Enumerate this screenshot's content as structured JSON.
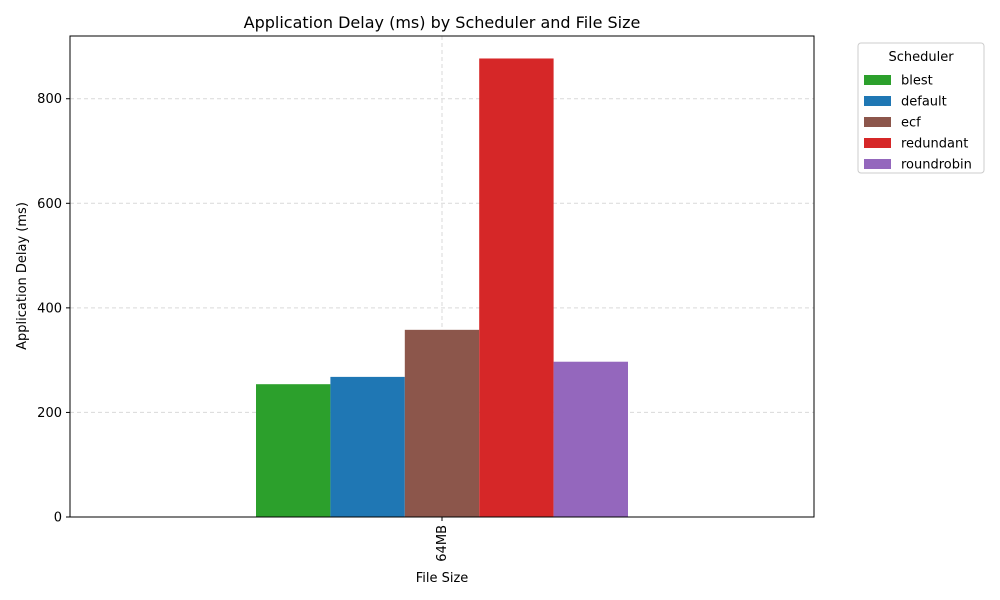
{
  "chart_data": {
    "type": "bar",
    "title": "Application Delay (ms) by Scheduler and File Size",
    "xlabel": "File Size",
    "ylabel": "Application Delay (ms)",
    "categories": [
      "64MB"
    ],
    "ylim": [
      0,
      920
    ],
    "yticks": [
      0,
      200,
      400,
      600,
      800
    ],
    "grid": true,
    "legend": {
      "title": "Scheduler",
      "placement": "outside-top-right"
    },
    "series": [
      {
        "name": "blest",
        "values": [
          254
        ],
        "color": "#2ca02c"
      },
      {
        "name": "default",
        "values": [
          268
        ],
        "color": "#1f77b4"
      },
      {
        "name": "ecf",
        "values": [
          358
        ],
        "color": "#8c564b"
      },
      {
        "name": "redundant",
        "values": [
          877
        ],
        "color": "#d62728"
      },
      {
        "name": "roundrobin",
        "values": [
          297
        ],
        "color": "#9467bd"
      }
    ]
  }
}
